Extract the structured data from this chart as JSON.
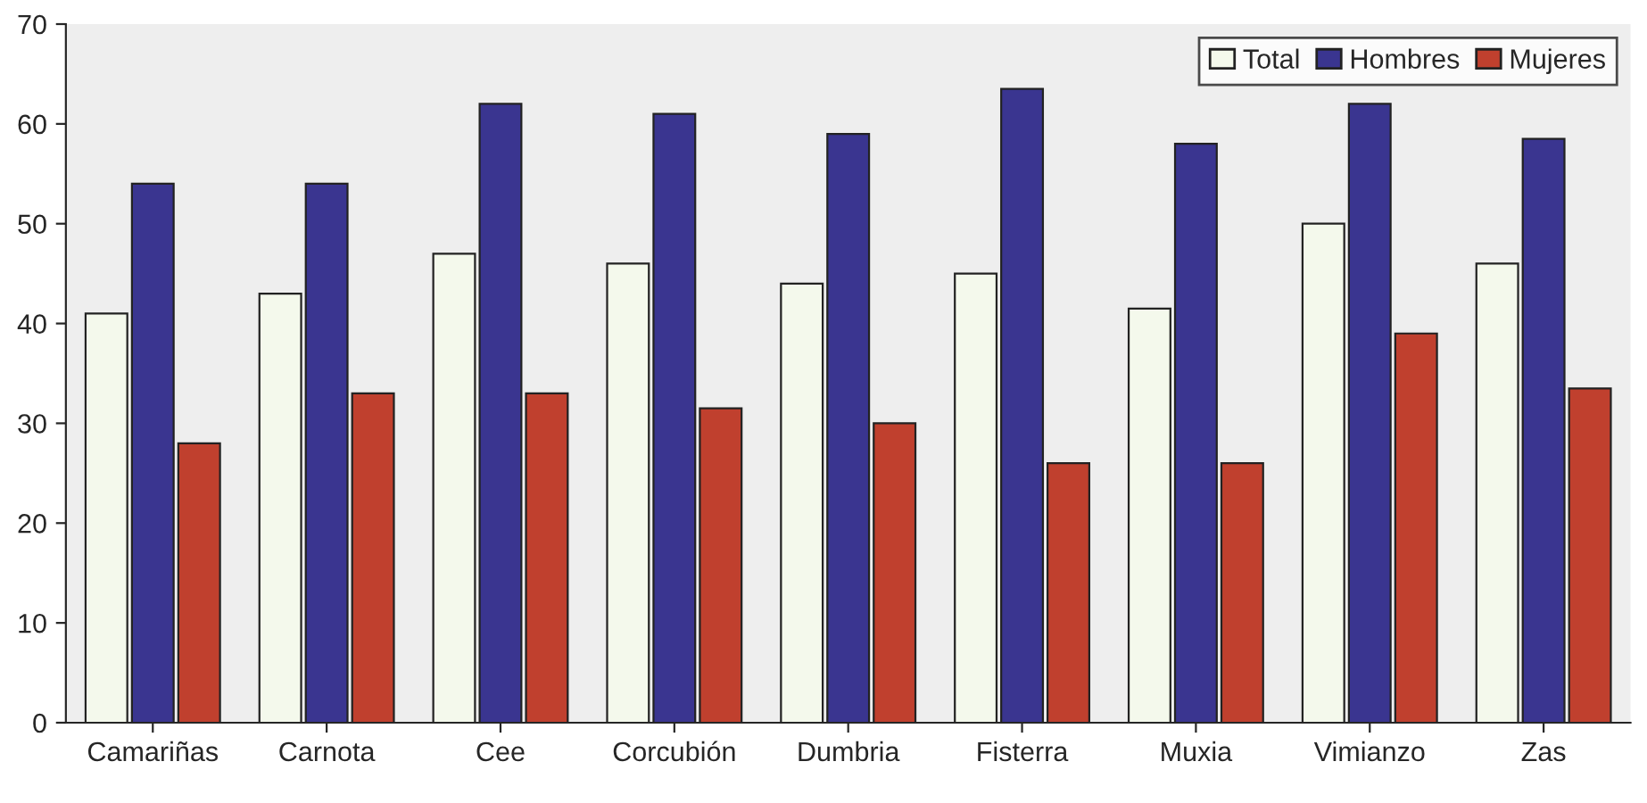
{
  "chart_data": {
    "type": "bar",
    "categories": [
      "Camariñas",
      "Carnota",
      "Cee",
      "Corcubión",
      "Dumbria",
      "Fisterra",
      "Muxia",
      "Vimianzo",
      "Zas"
    ],
    "series": [
      {
        "name": "Total",
        "color": "#f4f9ec",
        "values": [
          41,
          43,
          47,
          46,
          44,
          45,
          41.5,
          50,
          46
        ]
      },
      {
        "name": "Hombres",
        "color": "#3a3590",
        "values": [
          54,
          54,
          62,
          61,
          59,
          63.5,
          58,
          62,
          58.5
        ]
      },
      {
        "name": "Mujeres",
        "color": "#c0402e",
        "values": [
          28,
          33,
          33,
          31.5,
          30,
          26,
          26,
          39,
          33.5
        ]
      }
    ],
    "ylim": [
      0,
      70
    ],
    "yticks": [
      0,
      10,
      20,
      30,
      40,
      50,
      60,
      70
    ],
    "grid": false,
    "legend": "top right"
  }
}
